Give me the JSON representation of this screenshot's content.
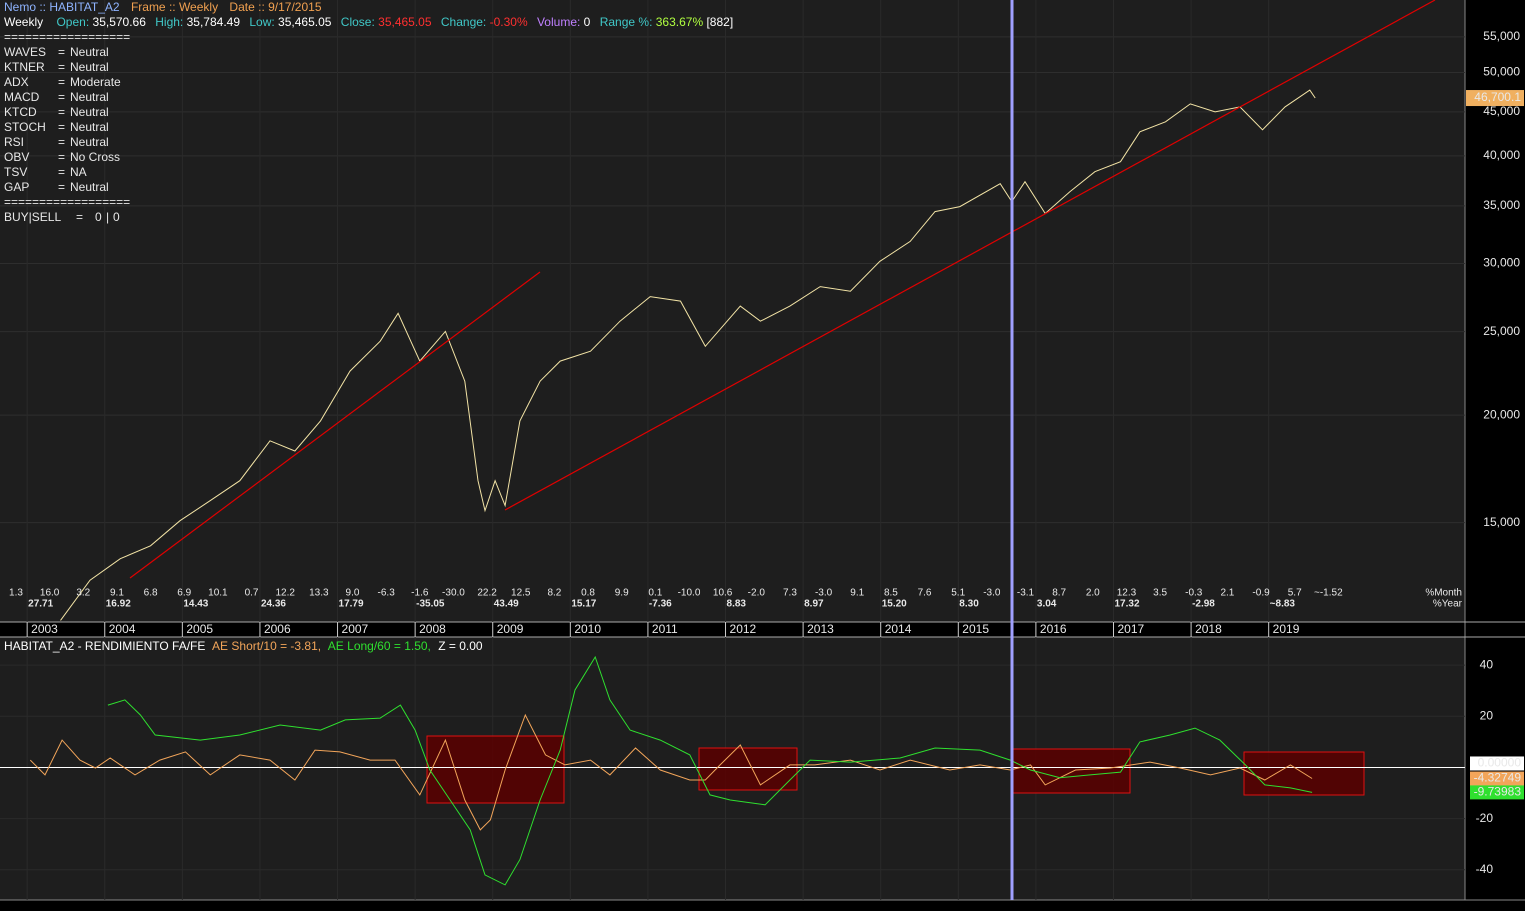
{
  "header": {
    "symbol": "Nemo :: HABITAT_A2",
    "frame": "Frame :: Weekly",
    "date": "Date :: 9/17/2015",
    "interval": "Weekly",
    "open_label": "Open:",
    "open": "35,570.66",
    "high_label": "High:",
    "high": "35,784.49",
    "low_label": "Low:",
    "low": "35,465.05",
    "close_label": "Close:",
    "close": "35,465.05",
    "change_label": "Change:",
    "change": "-0.30%",
    "volume_label": "Volume:",
    "volume": "0",
    "range_label": "Range %:",
    "range": "363.67%",
    "bars": "[882]"
  },
  "indicators": {
    "separator": "==================",
    "rows": [
      {
        "name": "WAVES",
        "eq": "=",
        "status": "Neutral",
        "color": "#3fdc6a"
      },
      {
        "name": "KTNER",
        "eq": "=",
        "status": "Neutral",
        "color": "#3fdc6a"
      },
      {
        "name": "ADX",
        "eq": "=",
        "status": "Moderate",
        "color": "#ff5a2a"
      },
      {
        "name": "MACD",
        "eq": "=",
        "status": "Neutral",
        "color": "#3fdc6a"
      },
      {
        "name": "KTCD",
        "eq": "=",
        "status": "Neutral",
        "color": "#3fdc6a"
      },
      {
        "name": "STOCH",
        "eq": "=",
        "status": "Neutral",
        "color": "#3fdc6a"
      },
      {
        "name": "RSI",
        "eq": "=",
        "status": "Neutral",
        "color": "#3fdc6a"
      },
      {
        "name": "OBV",
        "eq": "=",
        "status": "No Cross",
        "color": "#3fdc6a"
      },
      {
        "name": "TSV",
        "eq": "=",
        "status": "NA",
        "color": "#3fdc6a"
      },
      {
        "name": "GAP",
        "eq": "=",
        "status": "Neutral",
        "color": "#3fdc6a"
      }
    ],
    "signal": {
      "name": "BUY|SELL",
      "eq": "=",
      "buy": "0",
      "sep": "|",
      "sell": "0"
    }
  },
  "chart_data": [
    {
      "type": "line",
      "log_scale": true,
      "color": "#f3e4a6",
      "grid": true,
      "xlim": [
        2002.65,
        2021.53
      ],
      "xticks": [
        2003,
        2004,
        2005,
        2006,
        2007,
        2008,
        2009,
        2010,
        2011,
        2012,
        2013,
        2014,
        2015,
        2016,
        2017,
        2018,
        2019
      ],
      "ylim": [
        11500,
        60700
      ],
      "yticks": [
        {
          "value": 15000,
          "label": "15,000"
        },
        {
          "value": 20000,
          "label": "20,000"
        },
        {
          "value": 25000,
          "label": "25,000"
        },
        {
          "value": 30000,
          "label": "30,000"
        },
        {
          "value": 35000,
          "label": "35,000"
        },
        {
          "value": 40000,
          "label": "40,000"
        },
        {
          "value": 45000,
          "label": "45,000"
        },
        {
          "value": 50000,
          "label": "50,000"
        },
        {
          "value": 55000,
          "label": "55,000"
        }
      ],
      "x": [
        2003.43,
        2003.81,
        2004.2,
        2004.59,
        2004.97,
        2005.36,
        2005.74,
        2006.13,
        2006.45,
        2006.78,
        2007.16,
        2007.55,
        2007.78,
        2008.06,
        2008.39,
        2008.64,
        2008.81,
        2008.9,
        2009.03,
        2009.16,
        2009.35,
        2009.61,
        2009.87,
        2010.26,
        2010.64,
        2011.03,
        2011.42,
        2011.74,
        2012.19,
        2012.45,
        2012.83,
        2013.22,
        2013.61,
        2013.99,
        2014.38,
        2014.7,
        2015.02,
        2015.54,
        2015.69,
        2015.86,
        2016.12,
        2016.44,
        2016.76,
        2017.09,
        2017.34,
        2017.67,
        2017.99,
        2018.31,
        2018.63,
        2018.92,
        2019.21,
        2019.53,
        2019.6
      ],
      "values": [
        11550,
        12860,
        13620,
        14100,
        15080,
        15910,
        16780,
        18670,
        18170,
        19690,
        22500,
        24370,
        26260,
        23110,
        25020,
        21900,
        16780,
        15490,
        16780,
        15700,
        19690,
        21900,
        23110,
        23730,
        25710,
        27460,
        27130,
        24040,
        26770,
        25710,
        26770,
        28200,
        27860,
        30180,
        31830,
        34470,
        34930,
        37140,
        35400,
        37340,
        34290,
        36360,
        38350,
        39390,
        42670,
        43820,
        45970,
        45000,
        45600,
        42900,
        45600,
        47700,
        46700.1
      ],
      "last_label": "46,700.1",
      "period_returns": {
        "month_label": "%Month",
        "year_label": "%Year",
        "month": [
          "1.3",
          "16.0",
          "3.2",
          "9.1",
          "6.8",
          "6.9",
          "10.1",
          "0.7",
          "12.2",
          "13.3",
          "9.0",
          "-6.3",
          "-1.6",
          "-30.0",
          "22.2",
          "12.5",
          "8.2",
          "0.8",
          "9.9",
          "0.1",
          "-10.0",
          "10.6",
          "-2.0",
          "7.3",
          "-3.0",
          "9.1",
          "8.5",
          "7.6",
          "5.1",
          "-3.0",
          "-3.1",
          "8.7",
          "2.0",
          "12.3",
          "3.5",
          "-0.3",
          "2.1",
          "-0.9",
          "5.7",
          "~-1.52"
        ],
        "year": [
          "27.71",
          "16.92",
          "14.43",
          "24.36",
          "17.79",
          "-35.05",
          "43.49",
          "15.17",
          "-7.36",
          "8.83",
          "8.97",
          "15.20",
          "8.30",
          "3.04",
          "17.32",
          "-2.98",
          "~8.83"
        ]
      }
    },
    {
      "type": "line",
      "title": "HABITAT_A2 - RENDIMIENTO FA/FE",
      "xlim": [
        2002.65,
        2021.53
      ],
      "ylim": [
        -51.8,
        51
      ],
      "yticks": [
        -40,
        -20,
        20,
        40
      ],
      "reference_line": {
        "name": "Z = 0.00",
        "value": 0,
        "label": "0.00000",
        "color": "#ffffff"
      },
      "series": [
        {
          "name": "AE Short/10 = -3.81,",
          "color": "#f2a55a",
          "last_label": "-4.32749",
          "x": [
            2003.04,
            2003.23,
            2003.45,
            2003.68,
            2003.88,
            2004.07,
            2004.39,
            2004.71,
            2005.04,
            2005.36,
            2005.74,
            2006.13,
            2006.45,
            2006.71,
            2007.03,
            2007.42,
            2007.74,
            2008.06,
            2008.39,
            2008.64,
            2008.84,
            2008.97,
            2009.16,
            2009.42,
            2009.68,
            2009.93,
            2010.26,
            2010.51,
            2010.84,
            2011.16,
            2011.54,
            2011.74,
            2011.93,
            2012.19,
            2012.45,
            2012.83,
            2013.15,
            2013.61,
            2013.99,
            2014.38,
            2014.89,
            2015.28,
            2015.67,
            2015.93,
            2016.12,
            2016.51,
            2016.96,
            2017.47,
            2017.86,
            2018.25,
            2018.63,
            2018.95,
            2019.28,
            2019.56
          ],
          "values": [
            2.9,
            -2.9,
            10.7,
            2.9,
            -0.2,
            3.7,
            -2.9,
            2.9,
            6.1,
            -2.9,
            4.9,
            2.9,
            -4.9,
            6.8,
            6.1,
            2.9,
            2.9,
            -10.7,
            10.7,
            -12.7,
            -24.4,
            -20.5,
            -1,
            20.5,
            4.9,
            1,
            2.9,
            -2.9,
            7.6,
            -1,
            -4.9,
            -4.9,
            1,
            8.8,
            -6.8,
            1,
            1,
            2.9,
            -1,
            2.9,
            -1,
            1,
            -1,
            1,
            -6.8,
            -1,
            -0.2,
            2.1,
            -0.2,
            -2.9,
            -0.2,
            -4.9,
            1,
            -4.32749
          ]
        },
        {
          "name": "AE Long/60 = 1.50,",
          "color": "#2fe02f",
          "last_label": "-9.73983",
          "x": [
            2004.04,
            2004.26,
            2004.46,
            2004.65,
            2005.23,
            2005.74,
            2006.26,
            2006.78,
            2007.1,
            2007.55,
            2007.81,
            2008.0,
            2008.19,
            2008.45,
            2008.71,
            2008.9,
            2009.16,
            2009.35,
            2009.61,
            2009.87,
            2010.06,
            2010.32,
            2010.51,
            2010.77,
            2011.16,
            2011.54,
            2011.8,
            2012.06,
            2012.51,
            2012.83,
            2013.09,
            2013.61,
            2014.25,
            2014.7,
            2015.28,
            2015.67,
            2015.93,
            2016.31,
            2016.7,
            2017.09,
            2017.34,
            2017.73,
            2018.05,
            2018.37,
            2018.7,
            2018.95,
            2019.28,
            2019.56
          ],
          "values": [
            24.4,
            26.4,
            20.5,
            12.7,
            10.7,
            12.7,
            16.6,
            14.6,
            18.6,
            19.3,
            24.4,
            14.6,
            -1,
            -12.7,
            -24.4,
            -42,
            -45.9,
            -36,
            -12.7,
            6.8,
            30.3,
            43.2,
            26.4,
            14.6,
            10.7,
            4.9,
            -10.7,
            -12.7,
            -14.6,
            -4.9,
            2.9,
            2.1,
            3.7,
            7.6,
            6.8,
            2.9,
            -1,
            -4,
            -2.9,
            -1.8,
            10,
            12.7,
            15.4,
            10.7,
            1,
            -6.8,
            -8,
            -9.73983
          ]
        }
      ]
    }
  ]
}
